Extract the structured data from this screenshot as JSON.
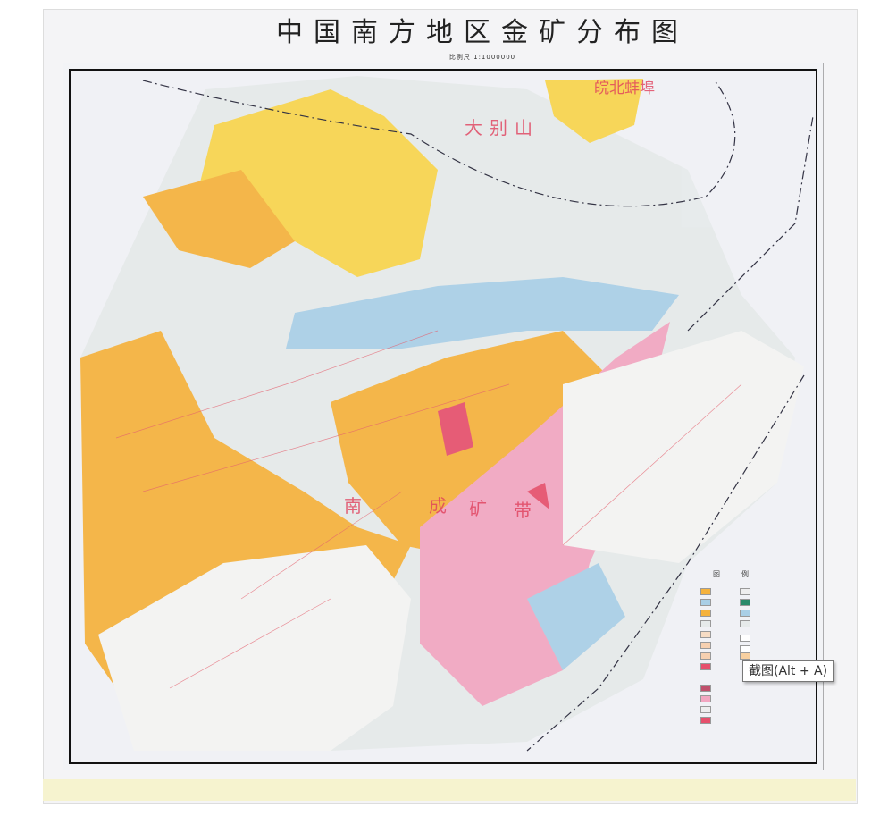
{
  "map": {
    "title": "中国南方地区金矿分布图",
    "scale": "比例尺 1:1000000",
    "region_labels": [
      "皖北蚌埠",
      "大别山",
      "南",
      "成",
      "矿",
      "带"
    ],
    "colors": {
      "orange": "#f5b23c",
      "yellow": "#f8d44c",
      "blue": "#a9cfe6",
      "pink": "#f2a6c0",
      "red": "#e6506c",
      "grey": "#e6eaea",
      "label_red": "#e0405c"
    },
    "legend": {
      "heading_left": "图",
      "heading_right": "例"
    }
  },
  "tooltip": {
    "text": "截图(Alt + A)"
  }
}
